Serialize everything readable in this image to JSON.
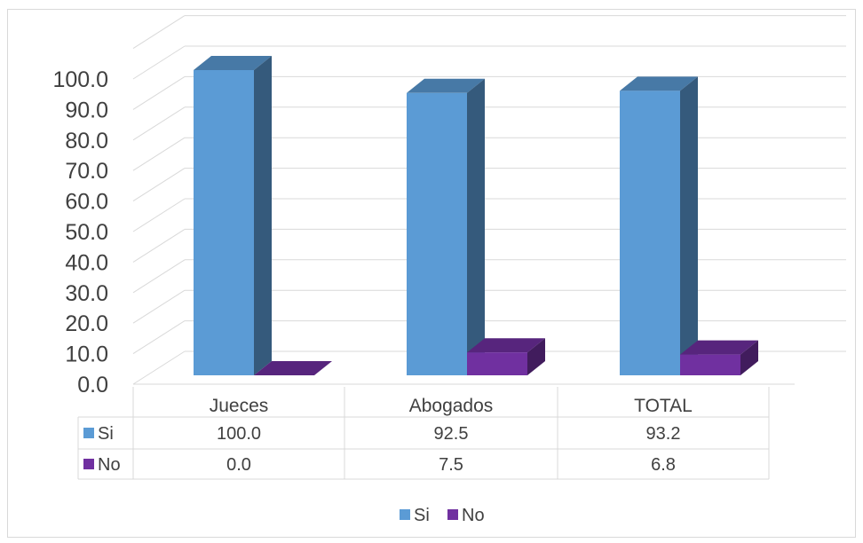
{
  "chart_data": {
    "type": "bar",
    "title": "",
    "xlabel": "",
    "ylabel": "",
    "ylim": [
      0,
      100
    ],
    "y_tick_step": 10,
    "y_tick_format": "0.0",
    "categories": [
      "Jueces",
      "Abogados",
      "TOTAL"
    ],
    "series": [
      {
        "name": "Si",
        "values": [
          100.0,
          92.5,
          93.2
        ],
        "color": "#5b9bd5"
      },
      {
        "name": "No",
        "values": [
          0.0,
          7.5,
          6.8
        ],
        "color": "#7030a0"
      }
    ],
    "data_table": true,
    "legend_position": "bottom",
    "grid": true
  }
}
